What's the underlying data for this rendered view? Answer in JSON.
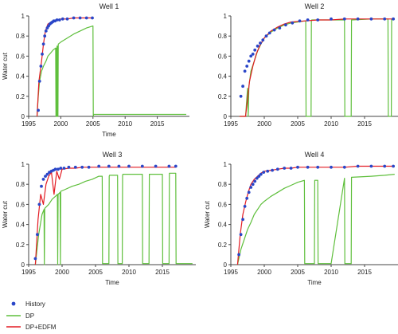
{
  "colors": {
    "history": "#2a46c8",
    "dp": "#5fbf3c",
    "dp_edfm": "#e31b23",
    "axis": "#444444"
  },
  "legend": {
    "history": "History",
    "dp": "DP",
    "dp_edfm": "DP+EDFM"
  },
  "chart_data": [
    {
      "type": "line",
      "title": "Well 1",
      "xlabel": "Time",
      "ylabel": "Water cut",
      "xlim": [
        1995,
        2020
      ],
      "ylim": [
        0,
        1
      ],
      "xticks": [
        1995,
        2000,
        2005,
        2010,
        2015
      ],
      "yticks": [
        0,
        0.2,
        0.4,
        0.6,
        0.8,
        1
      ],
      "series": [
        {
          "name": "History",
          "style": "points",
          "x": [
            1996.5,
            1996.7,
            1996.9,
            1997.1,
            1997.3,
            1997.5,
            1997.7,
            1997.9,
            1998.1,
            1998.3,
            1998.5,
            1998.7,
            1998.9,
            1999.1,
            1999.4,
            1999.8,
            2000.3,
            2001,
            2002,
            2003,
            2004,
            2004.9
          ],
          "y": [
            0.06,
            0.35,
            0.5,
            0.62,
            0.72,
            0.8,
            0.85,
            0.88,
            0.9,
            0.92,
            0.93,
            0.94,
            0.95,
            0.95,
            0.96,
            0.96,
            0.97,
            0.97,
            0.98,
            0.98,
            0.98,
            0.98
          ]
        },
        {
          "name": "DP",
          "style": "line",
          "x": [
            1996.3,
            1996.5,
            1996.7,
            1997,
            1997.3,
            1997.7,
            1998,
            1998.4,
            1998.8,
            1999.2,
            1999.25,
            1999.3,
            1999.35,
            1999.4,
            1999.45,
            1999.5,
            1999.55,
            1999.6,
            2000,
            2001,
            2002,
            2003,
            2004,
            2005,
            2005.05,
            2005.1,
            2019.5
          ],
          "y": [
            0,
            0.2,
            0.35,
            0.45,
            0.5,
            0.55,
            0.6,
            0.63,
            0.66,
            0.68,
            0,
            0.68,
            0,
            0.7,
            0,
            0.7,
            0,
            0.72,
            0.74,
            0.78,
            0.82,
            0.85,
            0.88,
            0.9,
            0,
            0.02,
            0.02
          ]
        },
        {
          "name": "DP+EDFM",
          "style": "line",
          "x": [
            1996.3,
            1996.6,
            1997,
            1997.3,
            1997.6,
            1998,
            1998.5,
            1999,
            1999.5,
            2000,
            2001,
            2002,
            2003,
            2004,
            2005
          ],
          "y": [
            0,
            0.35,
            0.55,
            0.72,
            0.85,
            0.92,
            0.94,
            0.95,
            0.96,
            0.97,
            0.97,
            0.98,
            0.98,
            0.98,
            0.98
          ]
        }
      ]
    },
    {
      "type": "line",
      "title": "Well 2",
      "xlabel": "",
      "ylabel": "",
      "xlim": [
        1995,
        2020
      ],
      "ylim": [
        0,
        1
      ],
      "xticks": [
        1995,
        2000,
        2005,
        2010,
        2015
      ],
      "yticks": [
        0,
        0.2,
        0.4,
        0.6,
        0.8,
        1
      ],
      "series": [
        {
          "name": "History",
          "style": "points",
          "x": [
            1996.5,
            1996.8,
            1997.1,
            1997.4,
            1997.7,
            1998,
            1998.3,
            1998.6,
            1999,
            1999.4,
            1999.8,
            2000.3,
            2000.8,
            2001.5,
            2002.3,
            2003.2,
            2004.2,
            2005.3,
            2006.5,
            2008,
            2010,
            2012,
            2014,
            2016,
            2018,
            2019.3
          ],
          "y": [
            0.2,
            0.3,
            0.45,
            0.5,
            0.55,
            0.6,
            0.62,
            0.66,
            0.7,
            0.73,
            0.76,
            0.8,
            0.83,
            0.86,
            0.88,
            0.91,
            0.93,
            0.95,
            0.96,
            0.96,
            0.97,
            0.97,
            0.97,
            0.97,
            0.97,
            0.97
          ]
        },
        {
          "name": "DP",
          "style": "line",
          "x": [
            1996.3,
            1997.2,
            1997.5,
            1997.6,
            1997.7,
            1998,
            1998.5,
            1999,
            1999.5,
            2000,
            2001,
            2002,
            2003,
            2004,
            2005,
            2006,
            2006.2,
            2006.25,
            2006.3,
            2007,
            2007.05,
            2007.1,
            2010,
            2012,
            2012.05,
            2012.1,
            2013,
            2013.05,
            2013.1,
            2016,
            2018.5,
            2018.55,
            2018.6,
            2019,
            2019.05,
            2019.1,
            2019.5
          ],
          "y": [
            0,
            0,
            0.28,
            0,
            0.3,
            0.45,
            0.55,
            0.65,
            0.72,
            0.78,
            0.84,
            0.88,
            0.91,
            0.93,
            0.94,
            0.95,
            0.95,
            0,
            0,
            0,
            0.95,
            0.96,
            0.96,
            0.96,
            0,
            0,
            0,
            0.96,
            0.96,
            0.97,
            0.97,
            0,
            0,
            0,
            0.97,
            0.97,
            0.97
          ]
        },
        {
          "name": "DP+EDFM",
          "style": "line",
          "x": [
            1996.3,
            1997.2,
            1997.8,
            1998.3,
            1998.8,
            1999.3,
            2000,
            2001,
            2002,
            2003,
            2004,
            2006,
            2008,
            2010,
            2012,
            2014,
            2016,
            2018,
            2019.5
          ],
          "y": [
            0,
            0,
            0.35,
            0.5,
            0.62,
            0.7,
            0.78,
            0.85,
            0.89,
            0.92,
            0.94,
            0.95,
            0.96,
            0.96,
            0.97,
            0.97,
            0.97,
            0.97,
            0.97
          ]
        }
      ]
    },
    {
      "type": "line",
      "title": "Well 3",
      "xlabel": "Time",
      "ylabel": "Water cut",
      "xlim": [
        1995,
        2020
      ],
      "ylim": [
        0,
        1
      ],
      "xticks": [
        1995,
        2000,
        2005,
        2010,
        2015
      ],
      "yticks": [
        0,
        0.2,
        0.4,
        0.6,
        0.8,
        1
      ],
      "series": [
        {
          "name": "History",
          "style": "points",
          "x": [
            1996,
            1996.3,
            1996.6,
            1996.9,
            1997.2,
            1997.5,
            1997.8,
            1998.1,
            1998.4,
            1998.7,
            1999,
            1999.4,
            1999.8,
            2000.3,
            2001,
            2002,
            2003,
            2004,
            2005.5,
            2007,
            2008.5,
            2010,
            2012,
            2014,
            2016,
            2017
          ],
          "y": [
            0.06,
            0.3,
            0.6,
            0.78,
            0.85,
            0.88,
            0.9,
            0.92,
            0.93,
            0.94,
            0.95,
            0.95,
            0.96,
            0.96,
            0.97,
            0.97,
            0.97,
            0.97,
            0.98,
            0.98,
            0.98,
            0.98,
            0.98,
            0.98,
            0.98,
            0.98
          ]
        },
        {
          "name": "DP",
          "style": "line",
          "x": [
            1996,
            1996.5,
            1997,
            1997.3,
            1997.35,
            1997.4,
            1998,
            1998.5,
            1999,
            1999.3,
            1999.35,
            1999.4,
            1999.7,
            1999.75,
            1999.8,
            2000.5,
            2001.5,
            2002.5,
            2003.5,
            2004.5,
            2005.5,
            2006,
            2006.05,
            2006.1,
            2007,
            2007.05,
            2007.1,
            2008.3,
            2008.35,
            2008.4,
            2009,
            2009.05,
            2009.1,
            2012,
            2012.05,
            2012.1,
            2013,
            2013.05,
            2013.1,
            2015,
            2015.05,
            2015.1,
            2016,
            2016.05,
            2016.1,
            2017,
            2017.05,
            2017.1,
            2019.5
          ],
          "y": [
            0,
            0.3,
            0.5,
            0.55,
            0,
            0.56,
            0.6,
            0.65,
            0.68,
            0.7,
            0,
            0.7,
            0.72,
            0,
            0.73,
            0.75,
            0.78,
            0.8,
            0.83,
            0.85,
            0.88,
            0.88,
            0.01,
            0.01,
            0.01,
            0.88,
            0.89,
            0.89,
            0.01,
            0.01,
            0.01,
            0.89,
            0.9,
            0.9,
            0.01,
            0.01,
            0.01,
            0.9,
            0.9,
            0.9,
            0.01,
            0.01,
            0.01,
            0.91,
            0.91,
            0.91,
            0.01,
            0.01,
            0.01
          ]
        },
        {
          "name": "DP+EDFM",
          "style": "line",
          "x": [
            1996,
            1996.4,
            1996.8,
            1997.2,
            1997.6,
            1998,
            1998.4,
            1998.8,
            1999.2,
            1999.6,
            2000,
            2001,
            2002,
            2003,
            2004,
            2005,
            2006,
            2007,
            2008,
            2009,
            2010,
            2012,
            2014,
            2016,
            2017
          ],
          "y": [
            0,
            0.45,
            0.7,
            0.6,
            0.8,
            0.88,
            0.92,
            0.7,
            0.93,
            0.85,
            0.95,
            0.96,
            0.96,
            0.97,
            0.97,
            0.97,
            0.97,
            0.97,
            0.97,
            0.97,
            0.97,
            0.97,
            0.97,
            0.97,
            0.97
          ]
        }
      ]
    },
    {
      "type": "line",
      "title": "Well 4",
      "xlabel": "Time",
      "ylabel": "Water cut",
      "xlim": [
        1995,
        2020
      ],
      "ylim": [
        0,
        1
      ],
      "xticks": [
        1995,
        2000,
        2005,
        2010,
        2015
      ],
      "yticks": [
        0,
        0.2,
        0.4,
        0.6,
        0.8,
        1
      ],
      "series": [
        {
          "name": "History",
          "style": "points",
          "x": [
            1996.2,
            1996.5,
            1996.8,
            1997.1,
            1997.4,
            1997.7,
            1998,
            1998.3,
            1998.6,
            1998.9,
            1999.2,
            1999.5,
            1999.9,
            2000.5,
            2001.2,
            2002,
            2003,
            2004,
            2005,
            2006.5,
            2008,
            2010,
            2012,
            2014,
            2016,
            2018,
            2019.3
          ],
          "y": [
            0.1,
            0.3,
            0.45,
            0.58,
            0.66,
            0.72,
            0.77,
            0.8,
            0.83,
            0.86,
            0.88,
            0.9,
            0.92,
            0.93,
            0.94,
            0.95,
            0.96,
            0.96,
            0.97,
            0.97,
            0.97,
            0.97,
            0.97,
            0.98,
            0.98,
            0.98,
            0.98
          ]
        },
        {
          "name": "DP",
          "style": "line",
          "x": [
            1996,
            1996.5,
            1997,
            1997.5,
            1998,
            1998.5,
            1999,
            1999.5,
            2000,
            2001,
            2002,
            2003,
            2004,
            2005,
            2006,
            2006.05,
            2006.1,
            2007.5,
            2007.55,
            2007.6,
            2008,
            2008.05,
            2008.1,
            2010,
            2012,
            2012.05,
            2012.1,
            2013,
            2013.05,
            2013.1,
            2016,
            2018,
            2019.5
          ],
          "y": [
            0,
            0.15,
            0.25,
            0.35,
            0.42,
            0.5,
            0.55,
            0.6,
            0.63,
            0.68,
            0.72,
            0.76,
            0.79,
            0.82,
            0.84,
            0.01,
            0.01,
            0.01,
            0.84,
            0.84,
            0.84,
            0.01,
            0.01,
            0.01,
            0.86,
            0.01,
            0.01,
            0.01,
            0.87,
            0.87,
            0.88,
            0.89,
            0.9
          ]
        },
        {
          "name": "DP+EDFM",
          "style": "line",
          "x": [
            1996,
            1996.4,
            1996.8,
            1997.2,
            1997.6,
            1998,
            1998.5,
            1999,
            1999.5,
            2000,
            2001,
            2002,
            2003,
            2004,
            2005,
            2006,
            2008,
            2010,
            2012,
            2014,
            2016,
            2018,
            2019.5
          ],
          "y": [
            0,
            0.3,
            0.5,
            0.62,
            0.72,
            0.8,
            0.85,
            0.88,
            0.91,
            0.93,
            0.94,
            0.95,
            0.96,
            0.96,
            0.97,
            0.97,
            0.97,
            0.97,
            0.97,
            0.98,
            0.98,
            0.98,
            0.98
          ]
        }
      ]
    }
  ]
}
